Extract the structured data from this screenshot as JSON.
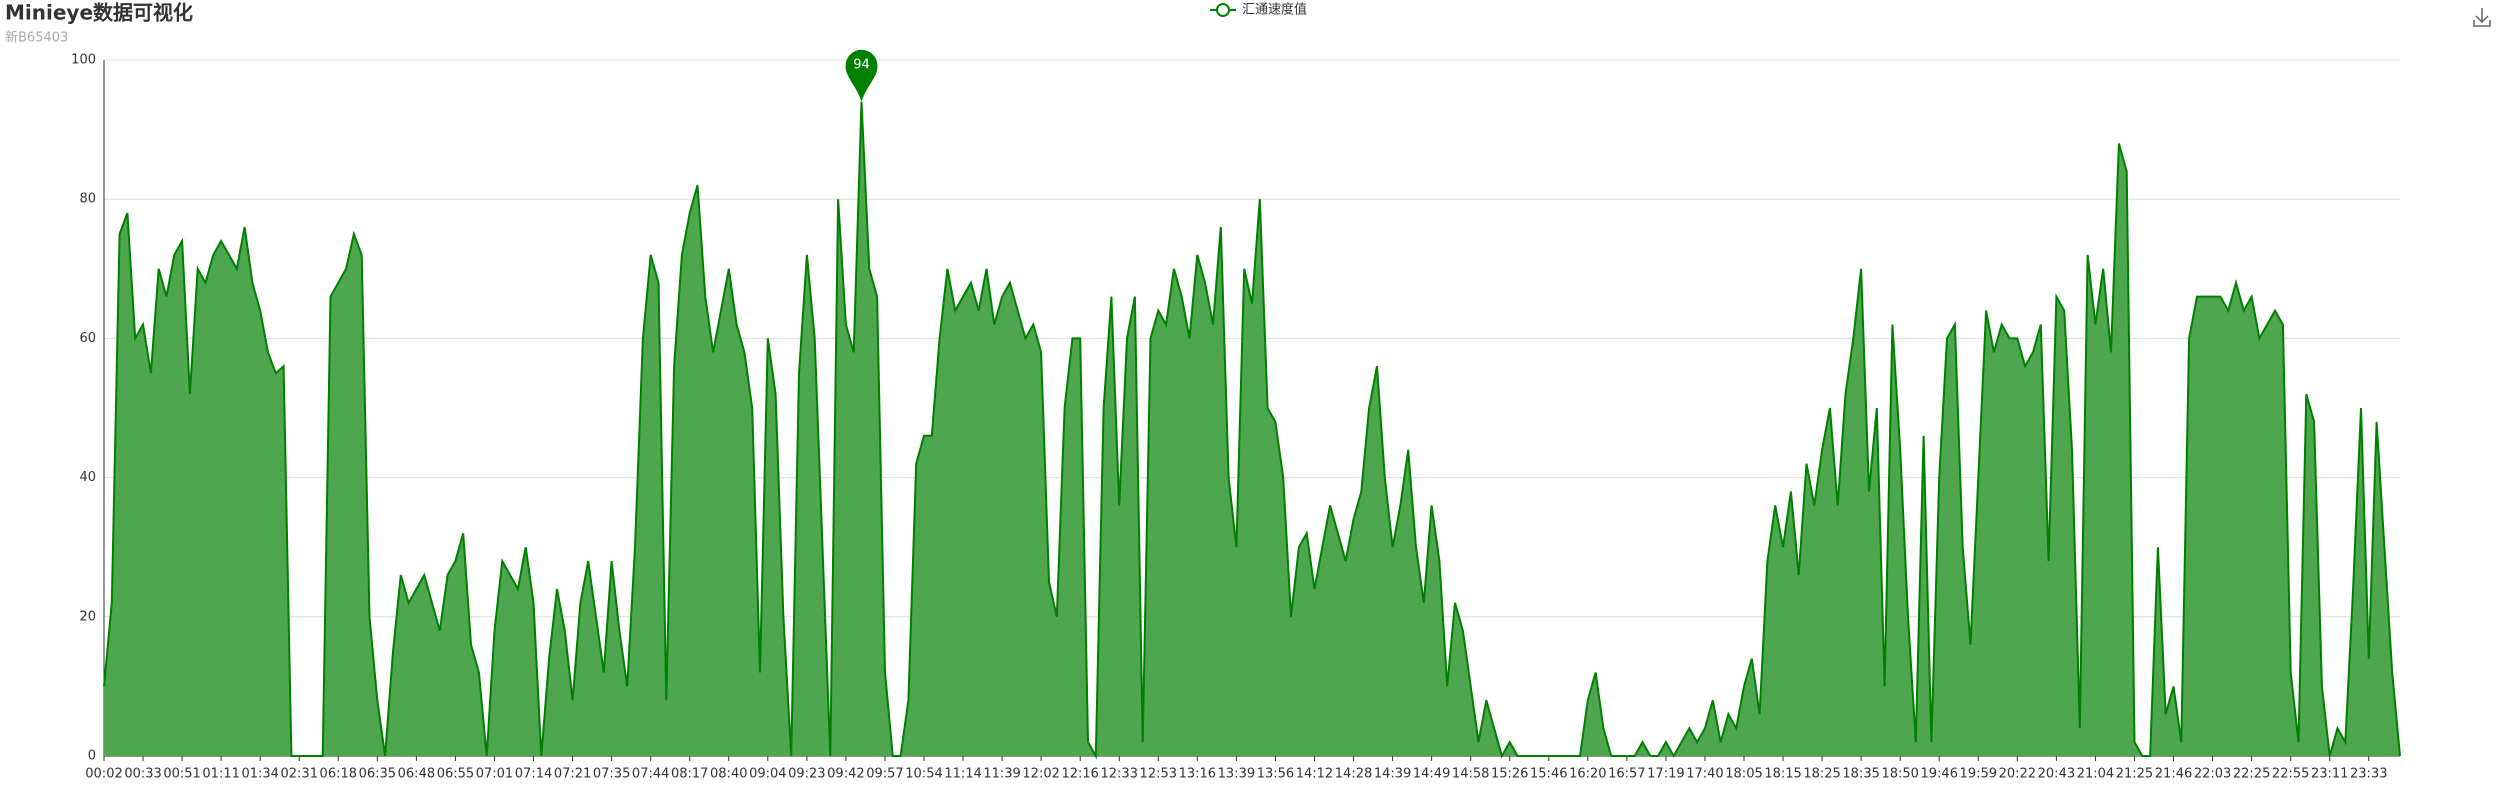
{
  "chart_data": {
    "type": "area",
    "title": "Minieye数据可视化",
    "subtitle": "新B65403",
    "categories": [
      "00:02",
      null,
      null,
      null,
      null,
      "00:33",
      null,
      null,
      null,
      null,
      "00:51",
      null,
      null,
      null,
      null,
      "01:11",
      null,
      null,
      null,
      null,
      "01:34",
      null,
      null,
      null,
      null,
      "02:31",
      null,
      null,
      null,
      null,
      "06:18",
      null,
      null,
      null,
      null,
      "06:35",
      null,
      null,
      null,
      null,
      "06:48",
      null,
      null,
      null,
      null,
      "06:55",
      null,
      null,
      null,
      null,
      "07:01",
      null,
      null,
      null,
      null,
      "07:14",
      null,
      null,
      null,
      null,
      "07:21",
      null,
      null,
      null,
      null,
      "07:35",
      null,
      null,
      null,
      null,
      "07:44",
      null,
      null,
      null,
      null,
      "08:17",
      null,
      null,
      null,
      null,
      "08:40",
      null,
      null,
      null,
      null,
      "09:04",
      null,
      null,
      null,
      null,
      "09:23",
      null,
      null,
      null,
      null,
      "09:42",
      null,
      null,
      null,
      null,
      "09:57",
      null,
      null,
      null,
      null,
      "10:54",
      null,
      null,
      null,
      null,
      "11:14",
      null,
      null,
      null,
      null,
      "11:39",
      null,
      null,
      null,
      null,
      "12:02",
      null,
      null,
      null,
      null,
      "12:16",
      null,
      null,
      null,
      null,
      "12:33",
      null,
      null,
      null,
      null,
      "12:53",
      null,
      null,
      null,
      null,
      "13:16",
      null,
      null,
      null,
      null,
      "13:39",
      null,
      null,
      null,
      null,
      "13:56",
      null,
      null,
      null,
      null,
      "14:12",
      null,
      null,
      null,
      null,
      "14:28",
      null,
      null,
      null,
      null,
      "14:39",
      null,
      null,
      null,
      null,
      "14:49",
      null,
      null,
      null,
      null,
      "14:58",
      null,
      null,
      null,
      null,
      "15:26",
      null,
      null,
      null,
      null,
      "15:46",
      null,
      null,
      null,
      null,
      "16:20",
      null,
      null,
      null,
      null,
      "16:57",
      null,
      null,
      null,
      null,
      "17:19",
      null,
      null,
      null,
      null,
      "17:40",
      null,
      null,
      null,
      null,
      "18:05",
      null,
      null,
      null,
      null,
      "18:15",
      null,
      null,
      null,
      null,
      "18:25",
      null,
      null,
      null,
      null,
      "18:35",
      null,
      null,
      null,
      null,
      "18:50",
      null,
      null,
      null,
      null,
      "19:46",
      null,
      null,
      null,
      null,
      "19:59",
      null,
      null,
      null,
      null,
      "20:22",
      null,
      null,
      null,
      null,
      "20:43",
      null,
      null,
      null,
      null,
      "21:04",
      null,
      null,
      null,
      null,
      "21:25",
      null,
      null,
      null,
      null,
      "21:46",
      null,
      null,
      null,
      null,
      "22:03",
      null,
      null,
      null,
      null,
      "22:25",
      null,
      null,
      null,
      null,
      "22:55",
      null,
      null,
      null,
      null,
      "23:11",
      null,
      null,
      null,
      null,
      "23:33",
      null,
      null,
      null,
      null
    ],
    "series": [
      {
        "name": "汇通速度值",
        "color": "#008000",
        "fill": "#4ea64e",
        "values": [
          10,
          22,
          75,
          78,
          60,
          62,
          55,
          70,
          66,
          72,
          74,
          52,
          70,
          68,
          72,
          74,
          72,
          70,
          76,
          68,
          64,
          58,
          55,
          56,
          0,
          0,
          0,
          0,
          0,
          66,
          68,
          70,
          75,
          72,
          20,
          8,
          0,
          15,
          26,
          22,
          24,
          26,
          22,
          18,
          26,
          28,
          32,
          16,
          12,
          0,
          18,
          28,
          26,
          24,
          30,
          22,
          0,
          14,
          24,
          18,
          8,
          22,
          28,
          20,
          12,
          28,
          18,
          10,
          30,
          60,
          72,
          68,
          8,
          56,
          72,
          78,
          82,
          66,
          58,
          64,
          70,
          62,
          58,
          50,
          12,
          60,
          52,
          20,
          0,
          55,
          72,
          60,
          30,
          0,
          80,
          62,
          58,
          94,
          70,
          66,
          12,
          0,
          0,
          8,
          42,
          46,
          46,
          60,
          70,
          64,
          66,
          68,
          64,
          70,
          62,
          66,
          68,
          64,
          60,
          62,
          58,
          25,
          20,
          50,
          60,
          60,
          2,
          0,
          50,
          66,
          36,
          60,
          66,
          2,
          60,
          64,
          62,
          70,
          66,
          60,
          72,
          68,
          62,
          76,
          40,
          30,
          70,
          65,
          80,
          50,
          48,
          40,
          20,
          30,
          32,
          24,
          30,
          36,
          32,
          28,
          34,
          38,
          50,
          56,
          40,
          30,
          36,
          44,
          30,
          22,
          36,
          28,
          10,
          22,
          18,
          10,
          2,
          8,
          4,
          0,
          2,
          0,
          0,
          0,
          0,
          0,
          0,
          0,
          0,
          0,
          8,
          12,
          4,
          0,
          0,
          0,
          0,
          2,
          0,
          0,
          2,
          0,
          2,
          4,
          2,
          4,
          8,
          2,
          6,
          4,
          10,
          14,
          6,
          28,
          36,
          30,
          38,
          26,
          42,
          36,
          44,
          50,
          36,
          52,
          60,
          70,
          38,
          50,
          10,
          62,
          44,
          20,
          2,
          46,
          2,
          40,
          60,
          62,
          30,
          16,
          40,
          64,
          58,
          62,
          60,
          60,
          56,
          58,
          62,
          28,
          66,
          64,
          44,
          4,
          72,
          62,
          70,
          58,
          88,
          84,
          2,
          0,
          0,
          30,
          6,
          10,
          2,
          60,
          66,
          66,
          66,
          66,
          64,
          68,
          64,
          66,
          60,
          62,
          64,
          62,
          12,
          2,
          52,
          48,
          10,
          0,
          4,
          2,
          24,
          50,
          14,
          48,
          30,
          12,
          0
        ]
      }
    ],
    "ylim": [
      0,
      100
    ],
    "yticks": [
      0,
      20,
      40,
      60,
      80,
      100
    ],
    "grid": true,
    "mark_point": "max",
    "legend": "top"
  }
}
